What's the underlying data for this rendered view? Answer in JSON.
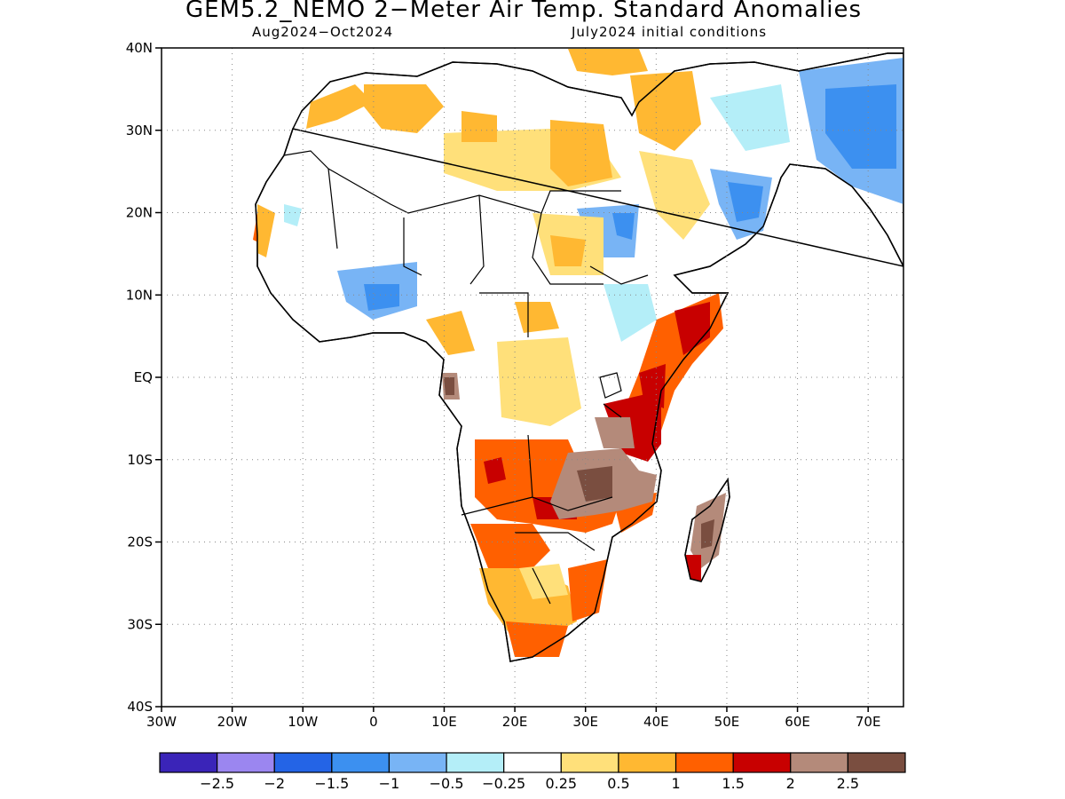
{
  "title": "GEM5.2_NEMO 2−Meter Air Temp. Standard Anomalies",
  "subtitle_left": "Aug2024−Oct2024",
  "subtitle_right": "July2024 initial conditions",
  "map": {
    "lon_range": [
      -30,
      75
    ],
    "lat_range": [
      -40,
      40
    ],
    "lat_ticks": [
      {
        "value": 40,
        "label": "40N"
      },
      {
        "value": 30,
        "label": "30N"
      },
      {
        "value": 20,
        "label": "20N"
      },
      {
        "value": 10,
        "label": "10N"
      },
      {
        "value": 0,
        "label": "EQ"
      },
      {
        "value": -10,
        "label": "10S"
      },
      {
        "value": -20,
        "label": "20S"
      },
      {
        "value": -30,
        "label": "30S"
      },
      {
        "value": -40,
        "label": "40S"
      }
    ],
    "lon_ticks": [
      {
        "value": -30,
        "label": "30W"
      },
      {
        "value": -20,
        "label": "20W"
      },
      {
        "value": -10,
        "label": "10W"
      },
      {
        "value": 0,
        "label": "0"
      },
      {
        "value": 10,
        "label": "10E"
      },
      {
        "value": 20,
        "label": "20E"
      },
      {
        "value": 30,
        "label": "30E"
      },
      {
        "value": 40,
        "label": "40E"
      },
      {
        "value": 50,
        "label": "50E"
      },
      {
        "value": 60,
        "label": "60E"
      },
      {
        "value": 70,
        "label": "70E"
      }
    ],
    "grid": true
  },
  "colorbar": {
    "colors": [
      "#3a24b8",
      "#9b86f0",
      "#2464e6",
      "#3c90f0",
      "#78b4f5",
      "#b4eef8",
      "#ffffff",
      "#ffe07a",
      "#ffb832",
      "#ff6000",
      "#c80000",
      "#b48a7a",
      "#7a4e40"
    ],
    "labels": [
      "−2.5",
      "−2",
      "−1.5",
      "−1",
      "−0.5",
      "−0.25",
      "0.25",
      "0.5",
      "1",
      "1.5",
      "2",
      "2.5"
    ]
  },
  "colors": {
    "land_outline": "#000000",
    "background": "#ffffff"
  }
}
